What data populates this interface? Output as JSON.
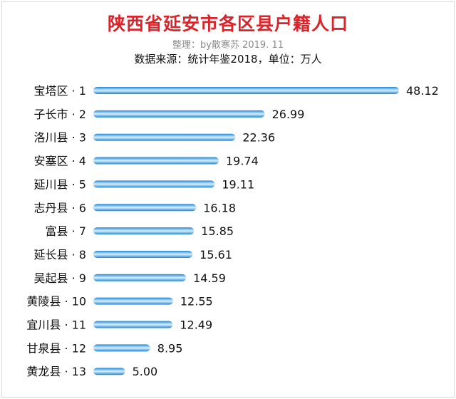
{
  "title": "陕西省延安市各区县户籍人口",
  "subtitle": "整理：by散寒苏  2019. 11",
  "source_line": "数据来源：统计年鉴2018，单位：万人",
  "colors": {
    "title": "#d9242b",
    "bar_dark": "#1f86d6",
    "bar_light": "#d8f0ff"
  },
  "chart_data": {
    "type": "bar",
    "orientation": "horizontal",
    "title": "陕西省延安市各区县户籍人口",
    "unit": "万人",
    "categories": [
      "宝塔区 · 1",
      "子长市 · 2",
      "洛川县 · 3",
      "安塞区 · 4",
      "延川县 · 5",
      "志丹县 · 6",
      "富县 · 7",
      "延长县 · 8",
      "吴起县 · 9",
      "黄陵县 · 10",
      "宜川县 · 11",
      "甘泉县 · 12",
      "黄龙县 · 13"
    ],
    "values": [
      48.12,
      26.99,
      22.36,
      19.74,
      19.11,
      16.18,
      15.85,
      15.61,
      14.59,
      12.55,
      12.49,
      8.95,
      5.0
    ],
    "value_labels": [
      "48.12",
      "26.99",
      "22.36",
      "19.74",
      "19.11",
      "16.18",
      "15.85",
      "15.61",
      "14.59",
      "12.55",
      "12.49",
      "8.95",
      "5.00"
    ],
    "xlim": [
      0,
      48.12
    ],
    "grid": false,
    "legend": "none"
  }
}
